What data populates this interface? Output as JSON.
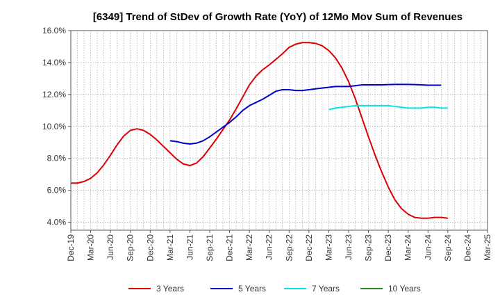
{
  "chart_data": {
    "type": "line",
    "title": "[6349]  Trend of StDev of Growth Rate (YoY) of 12Mo Mov Sum of Revenues",
    "xlabel": "",
    "ylabel": "",
    "ylim": [
      3.5,
      16.0
    ],
    "yticks": [
      4.0,
      6.0,
      8.0,
      10.0,
      12.0,
      14.0,
      16.0
    ],
    "ytick_labels": [
      "4.0%",
      "6.0%",
      "8.0%",
      "10.0%",
      "12.0%",
      "14.0%",
      "16.0%"
    ],
    "xtick_labels": [
      "Dec-19",
      "Mar-20",
      "Jun-20",
      "Sep-20",
      "Dec-20",
      "Mar-21",
      "Jun-21",
      "Sep-21",
      "Dec-21",
      "Mar-22",
      "Jun-22",
      "Sep-22",
      "Dec-22",
      "Mar-23",
      "Jun-23",
      "Sep-23",
      "Dec-23",
      "Mar-24",
      "Jun-24",
      "Sep-24",
      "Dec-24",
      "Mar-25"
    ],
    "x_start": "Dec-19",
    "x_count_months": 63,
    "grid": true,
    "legend_position": "bottom",
    "series": [
      {
        "name": "3 Years",
        "color": "#dd0000",
        "start_month_index": 0,
        "values": [
          6.45,
          6.45,
          6.55,
          6.75,
          7.1,
          7.6,
          8.2,
          8.85,
          9.4,
          9.75,
          9.85,
          9.75,
          9.5,
          9.15,
          8.75,
          8.35,
          7.95,
          7.65,
          7.55,
          7.7,
          8.1,
          8.65,
          9.2,
          9.8,
          10.4,
          11.1,
          11.85,
          12.6,
          13.15,
          13.55,
          13.85,
          14.2,
          14.55,
          14.95,
          15.15,
          15.25,
          15.25,
          15.2,
          15.05,
          14.75,
          14.3,
          13.65,
          12.8,
          11.75,
          10.55,
          9.35,
          8.2,
          7.15,
          6.2,
          5.4,
          4.85,
          4.5,
          4.3,
          4.25,
          4.25,
          4.3,
          4.3,
          4.25
        ]
      },
      {
        "name": "5 Years",
        "color": "#0000cc",
        "start_month_index": 15,
        "values": [
          9.1,
          9.05,
          8.95,
          8.9,
          8.95,
          9.1,
          9.35,
          9.65,
          9.95,
          10.25,
          10.6,
          11.0,
          11.3,
          11.5,
          11.7,
          11.95,
          12.2,
          12.3,
          12.3,
          12.25,
          12.25,
          12.3,
          12.35,
          12.4,
          12.45,
          12.5,
          12.5,
          12.5,
          12.55,
          12.6,
          12.6,
          12.6,
          12.6,
          12.62,
          12.63,
          12.63,
          12.63,
          12.62,
          12.6,
          12.58,
          12.58,
          12.58
        ]
      },
      {
        "name": "7 Years",
        "color": "#00e5e5",
        "start_month_index": 39,
        "values": [
          11.05,
          11.15,
          11.2,
          11.25,
          11.3,
          11.3,
          11.3,
          11.3,
          11.3,
          11.3,
          11.25,
          11.2,
          11.15,
          11.15,
          11.15,
          11.2,
          11.2,
          11.15,
          11.15
        ]
      },
      {
        "name": "10 Years",
        "color": "#228b22",
        "start_month_index": 63,
        "values": []
      }
    ]
  }
}
